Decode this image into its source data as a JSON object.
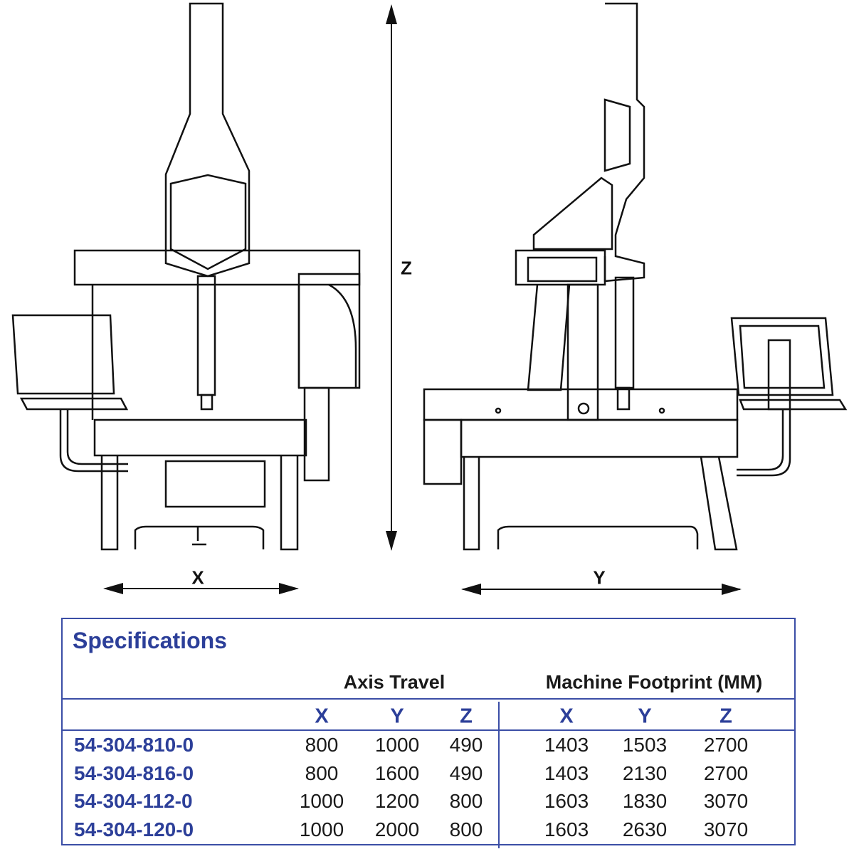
{
  "drawing": {
    "dimension_labels": {
      "x": "X",
      "y": "Y",
      "z": "Z"
    }
  },
  "specifications": {
    "title": "Specifications",
    "groups": {
      "axis_travel": "Axis Travel",
      "footprint": "Machine Footprint (MM)"
    },
    "axis_headers": [
      "X",
      "Y",
      "Z"
    ],
    "rows": [
      {
        "model": "54-304-810-0",
        "travel": [
          "800",
          "1000",
          "490"
        ],
        "footprint": [
          "1403",
          "1503",
          "2700"
        ]
      },
      {
        "model": "54-304-816-0",
        "travel": [
          "800",
          "1600",
          "490"
        ],
        "footprint": [
          "1403",
          "2130",
          "2700"
        ]
      },
      {
        "model": "54-304-112-0",
        "travel": [
          "1000",
          "1200",
          "800"
        ],
        "footprint": [
          "1603",
          "1830",
          "3070"
        ]
      },
      {
        "model": "54-304-120-0",
        "travel": [
          "1000",
          "2000",
          "800"
        ],
        "footprint": [
          "1603",
          "2630",
          "3070"
        ]
      }
    ],
    "colors": {
      "accent": "#2c3f99",
      "border": "#3b4ea6",
      "text": "#1a1a1a"
    }
  }
}
